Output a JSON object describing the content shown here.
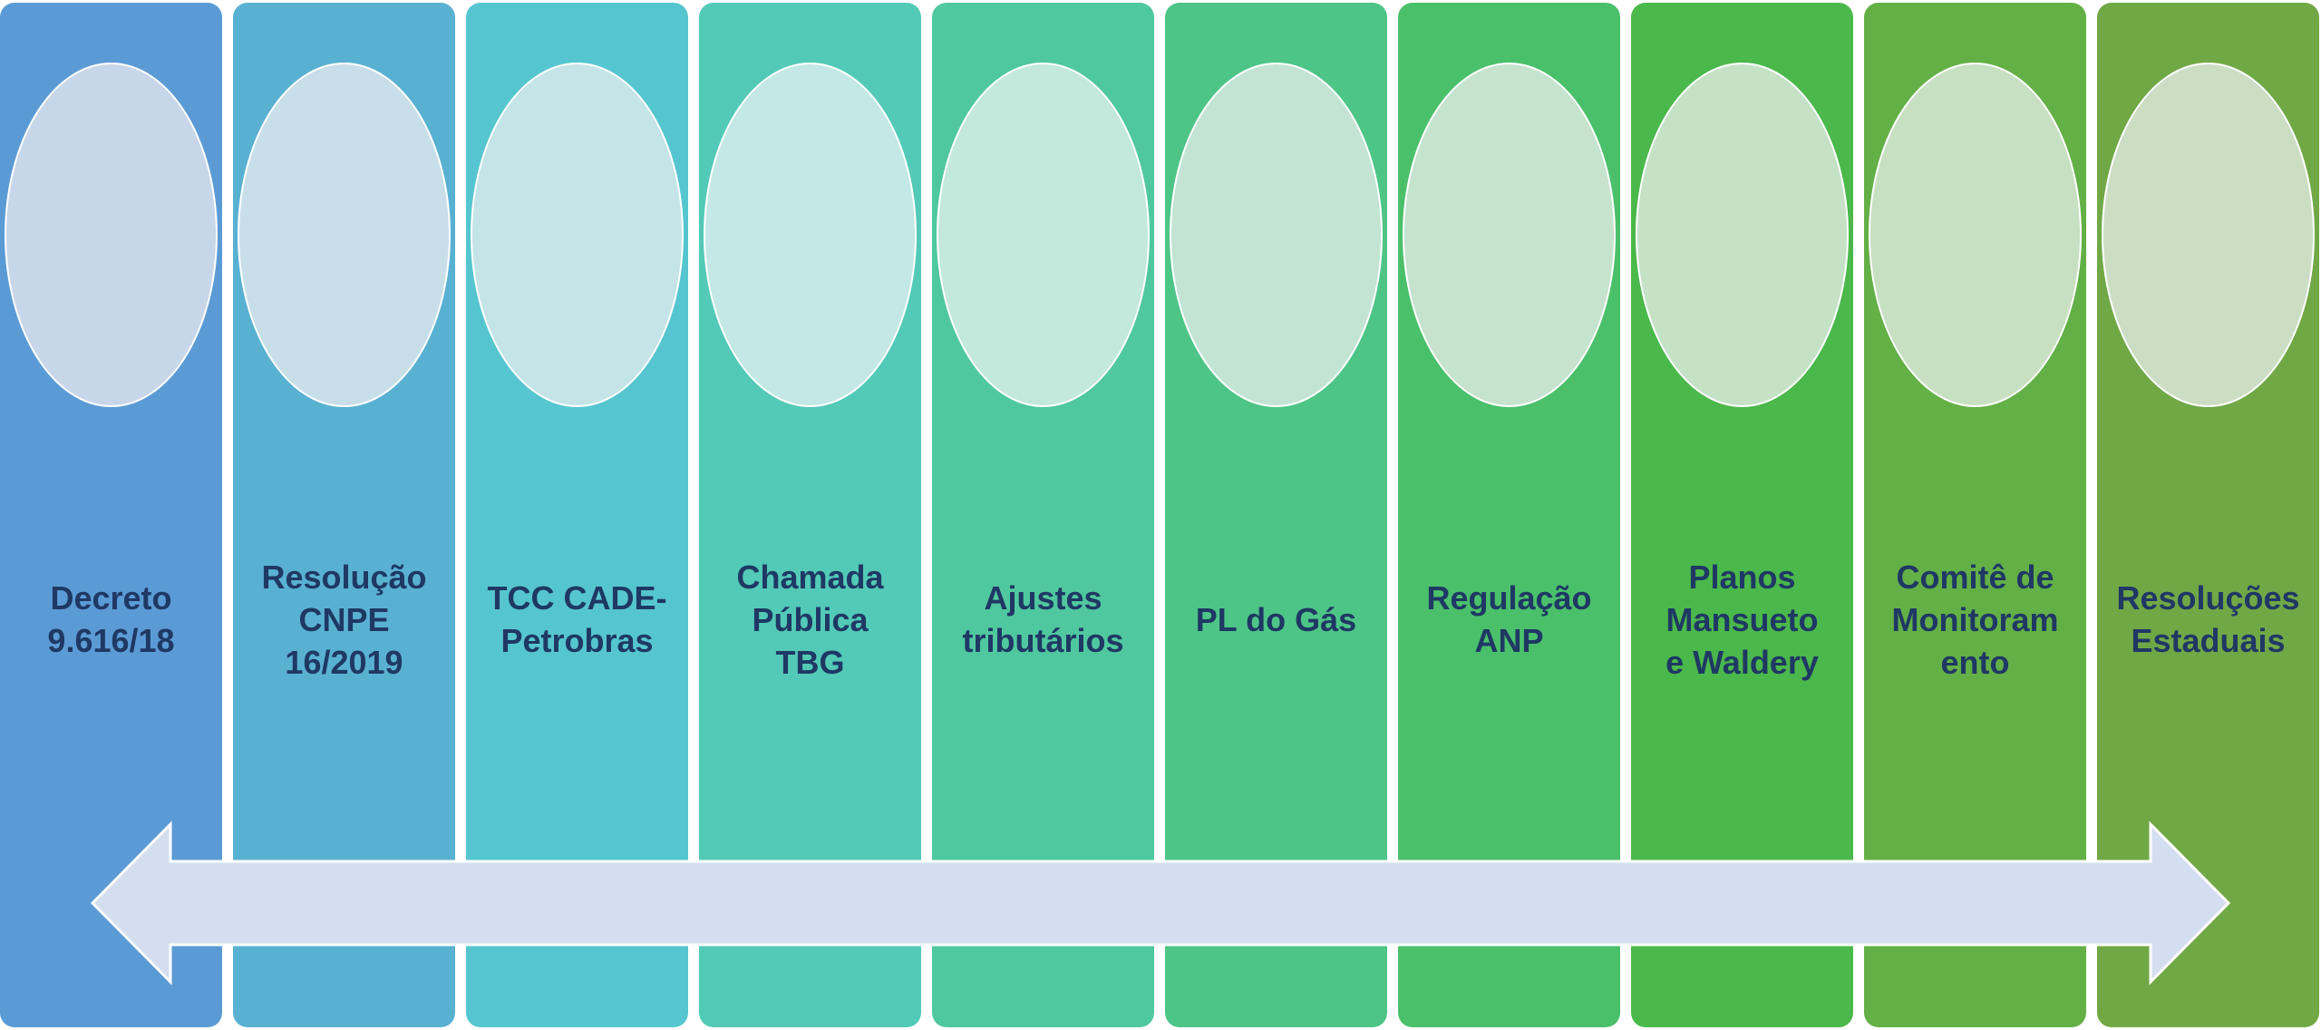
{
  "columns": [
    {
      "label": "Decreto\n9.616/18",
      "color": "#5b9bd5",
      "ellipse_color": "#c8d6ea"
    },
    {
      "label": "Resolução\nCNPE\n16/2019",
      "color": "#59b1d2",
      "ellipse_color": "#c8dfea"
    },
    {
      "label": "TCC CADE-\nPetrobras",
      "color": "#55c6cf",
      "ellipse_color": "#c4e4e8"
    },
    {
      "label": "Chamada\nPública\nTBG",
      "color": "#52cab7",
      "ellipse_color": "#c3e8e5"
    },
    {
      "label": "Ajustes\ntributários",
      "color": "#50c89f",
      "ellipse_color": "#c3e8dc"
    },
    {
      "label": "PL do Gás",
      "color": "#4dc587",
      "ellipse_color": "#c3e4d3"
    },
    {
      "label": "Regulação\nANP",
      "color": "#4ac06b",
      "ellipse_color": "#c5e3cd"
    },
    {
      "label": "Planos\nMansueto\ne Waldery",
      "color": "#4ab84a",
      "ellipse_color": "#c5e2c7"
    },
    {
      "label": "Comitê de\nMonitoram\nento",
      "color": "#63b046",
      "ellipse_color": "#c7e0c1"
    },
    {
      "label": "Resoluções\nEstaduais",
      "color": "#71a846",
      "ellipse_color": "#cbdec4"
    }
  ],
  "arrow": {
    "color": "#d3dff0",
    "direction": "bidirectional"
  }
}
